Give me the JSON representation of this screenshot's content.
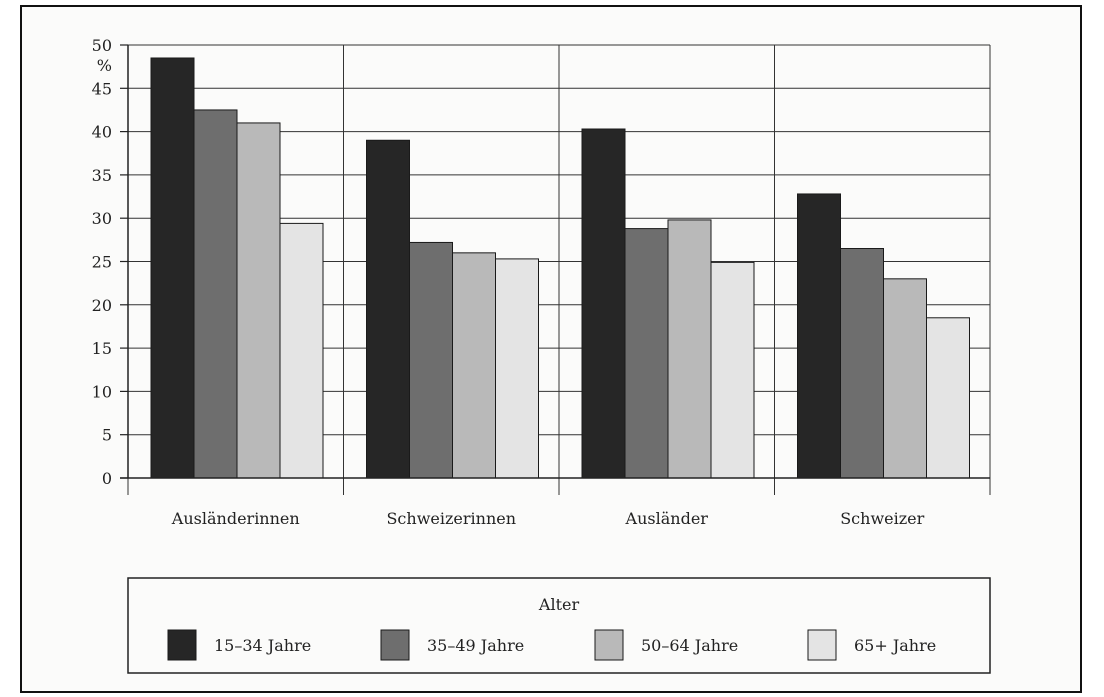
{
  "chart_data": {
    "type": "bar",
    "unit_label": "%",
    "categories": [
      "Ausländerinnen",
      "Schweizerinnen",
      "Ausländer",
      "Schweizer"
    ],
    "ylim": [
      0,
      50
    ],
    "yticks": [
      0,
      5,
      10,
      15,
      20,
      25,
      30,
      35,
      40,
      45,
      50
    ],
    "grid": true,
    "legend_title": "Alter",
    "legend_position": "bottom",
    "series": [
      {
        "name": "15–34 Jahre",
        "color": "#262626",
        "values": [
          48.5,
          39.0,
          40.3,
          32.8
        ]
      },
      {
        "name": "35–49 Jahre",
        "color": "#6e6e6e",
        "values": [
          42.5,
          27.2,
          28.8,
          26.5
        ]
      },
      {
        "name": "50–64 Jahre",
        "color": "#b9b9b9",
        "values": [
          41.0,
          26.0,
          29.8,
          23.0
        ]
      },
      {
        "name": "65+ Jahre",
        "color": "#e4e4e4",
        "values": [
          29.4,
          25.3,
          24.9,
          18.5
        ]
      }
    ]
  }
}
